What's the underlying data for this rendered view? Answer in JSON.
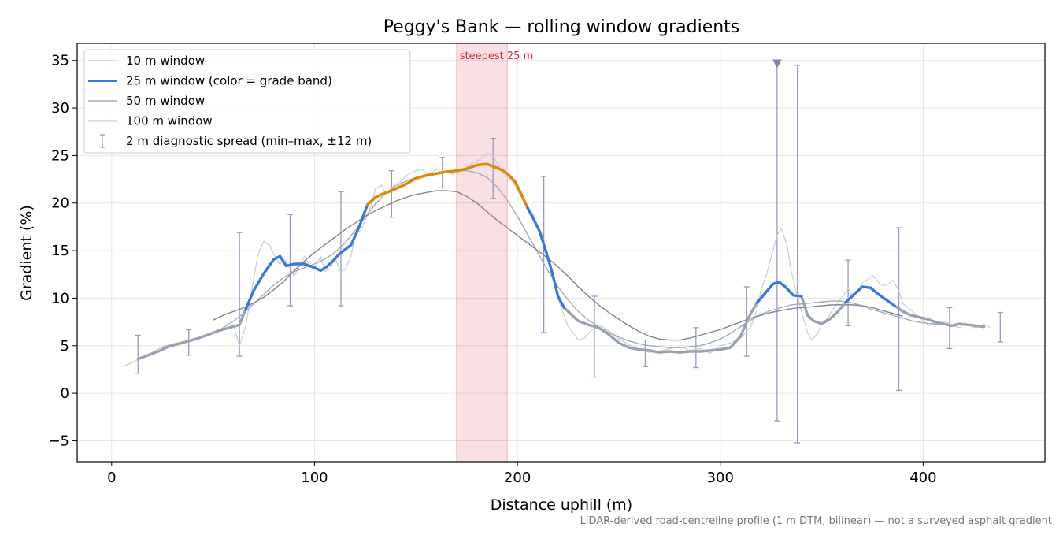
{
  "chart_data": {
    "type": "line",
    "title": "Peggy's Bank — rolling window gradients",
    "xlabel": "Distance uphill (m)",
    "ylabel": "Gradient (%)",
    "xlim": [
      -17,
      460
    ],
    "ylim": [
      -7.2,
      36.8
    ],
    "xticks": [
      0,
      100,
      200,
      300,
      400
    ],
    "yticks": [
      -5,
      0,
      5,
      10,
      15,
      20,
      25,
      30,
      35
    ],
    "grid": true,
    "legend_position": "upper-left",
    "footnote": "LiDAR-derived road-centreline profile (1 m DTM, bilinear) — not a surveyed asphalt gradient",
    "highlight": {
      "label": "steepest 25 m",
      "x_range": [
        170,
        195
      ],
      "color": "#d62839"
    },
    "marker": {
      "x": 328,
      "y": 34.6,
      "symbol": "triangle-down",
      "color": "#8a7fa8"
    },
    "grade_colors": {
      "moderate": "#3a78d6",
      "steep": "#e08800",
      "steep_threshold": 20
    },
    "series": [
      {
        "name": "10 m window",
        "color": "#c6ccd6",
        "width": 1.2,
        "x": [
          5,
          10,
          15,
          20,
          25,
          30,
          35,
          40,
          45,
          50,
          55,
          60,
          63,
          66,
          68,
          70,
          72,
          75,
          78,
          80,
          83,
          85,
          88,
          90,
          93,
          95,
          98,
          100,
          103,
          105,
          108,
          110,
          113,
          115,
          118,
          120,
          123,
          125,
          128,
          130,
          133,
          135,
          138,
          140,
          143,
          145,
          148,
          150,
          153,
          155,
          158,
          160,
          163,
          165,
          168,
          170,
          173,
          175,
          178,
          180,
          183,
          185,
          188,
          190,
          193,
          195,
          198,
          200,
          203,
          205,
          208,
          210,
          213,
          215,
          218,
          220,
          223,
          225,
          228,
          230,
          233,
          235,
          238,
          240,
          245,
          250,
          255,
          260,
          265,
          270,
          275,
          280,
          285,
          290,
          295,
          300,
          305,
          310,
          315,
          318,
          320,
          323,
          325,
          328,
          330,
          333,
          335,
          338,
          340,
          343,
          345,
          348,
          350,
          353,
          355,
          358,
          360,
          363,
          365,
          368,
          370,
          373,
          375,
          378,
          380,
          383,
          385,
          388,
          390,
          393,
          395,
          398,
          400,
          403,
          405,
          408,
          410,
          413,
          415,
          418,
          420,
          423,
          425,
          428,
          430,
          433
        ],
        "y": [
          2.8,
          3.2,
          3.8,
          4.3,
          4.9,
          5.2,
          5.4,
          5.6,
          5.9,
          6.3,
          6.6,
          7.2,
          5.0,
          7.0,
          9.5,
          12.0,
          14.5,
          16.0,
          15.5,
          14.6,
          13.5,
          14.2,
          13.1,
          12.3,
          13.6,
          14.4,
          13.3,
          13.1,
          14.4,
          12.8,
          13.1,
          14.3,
          12.7,
          13.0,
          14.4,
          16.7,
          17.2,
          18.2,
          19.8,
          21.5,
          21.9,
          21.0,
          21.6,
          22.0,
          22.3,
          22.9,
          23.2,
          23.4,
          23.6,
          23.1,
          23.2,
          23.6,
          23.1,
          23.3,
          23.0,
          23.2,
          23.4,
          23.8,
          24.2,
          24.4,
          24.8,
          25.3,
          25.0,
          24.2,
          23.2,
          22.8,
          22.2,
          21.3,
          20.3,
          19.6,
          18.8,
          17.3,
          15.5,
          14.3,
          12.0,
          10.0,
          8.2,
          7.0,
          6.2,
          5.6,
          5.8,
          6.3,
          6.9,
          7.2,
          6.6,
          5.7,
          5.1,
          4.6,
          4.3,
          4.4,
          4.7,
          4.9,
          4.5,
          4.7,
          4.2,
          5.0,
          5.3,
          5.8,
          7.0,
          8.7,
          10.8,
          12.6,
          14.3,
          16.6,
          17.4,
          15.5,
          12.8,
          10.2,
          8.6,
          6.4,
          5.6,
          6.3,
          7.4,
          7.9,
          8.7,
          9.5,
          10.1,
          11.0,
          10.4,
          10.9,
          11.6,
          12.0,
          12.4,
          11.7,
          11.3,
          11.5,
          11.9,
          10.8,
          9.4,
          9.0,
          8.5,
          8.0,
          7.6,
          7.1,
          7.4,
          7.2,
          7.6,
          7.3,
          7.1,
          6.9,
          7.3,
          7.2,
          6.9,
          7.0,
          7.3,
          6.9
        ]
      },
      {
        "name": "25 m window (color = grade band)",
        "color": "#3a78d6",
        "width": 2.6,
        "grade_colored": true,
        "x": [
          13,
          18,
          23,
          28,
          33,
          38,
          43,
          48,
          53,
          58,
          63,
          66,
          70,
          75,
          80,
          83,
          86,
          90,
          95,
          100,
          103,
          106,
          109,
          112,
          115,
          118,
          122,
          126,
          130,
          134,
          138,
          142,
          146,
          150,
          155,
          160,
          165,
          170,
          175,
          180,
          185,
          190,
          193,
          196,
          199,
          202,
          205,
          208,
          211,
          214,
          217,
          220,
          223,
          226,
          230,
          235,
          240,
          245,
          250,
          255,
          260,
          265,
          270,
          275,
          280,
          285,
          290,
          295,
          300,
          305,
          310,
          314,
          318,
          322,
          326,
          329,
          332,
          336,
          340,
          343,
          346,
          350,
          354,
          358,
          362,
          366,
          370,
          374,
          378,
          382,
          386,
          390,
          394,
          398,
          402,
          406,
          410,
          414,
          418,
          422,
          426,
          430
        ],
        "y": [
          3.6,
          4.0,
          4.4,
          4.9,
          5.2,
          5.5,
          5.8,
          6.2,
          6.6,
          6.9,
          7.2,
          8.8,
          10.8,
          12.6,
          14.1,
          14.4,
          13.4,
          13.6,
          13.6,
          13.2,
          12.9,
          13.3,
          13.9,
          14.6,
          15.1,
          15.6,
          17.5,
          19.8,
          20.6,
          21.0,
          21.3,
          21.7,
          22.1,
          22.6,
          22.9,
          23.1,
          23.3,
          23.4,
          23.6,
          24.0,
          24.1,
          23.7,
          23.4,
          22.9,
          22.2,
          20.9,
          19.5,
          18.3,
          17.0,
          15.0,
          12.8,
          10.2,
          9.0,
          8.4,
          7.6,
          7.2,
          6.9,
          6.2,
          5.3,
          4.8,
          4.6,
          4.5,
          4.3,
          4.4,
          4.3,
          4.4,
          4.4,
          4.5,
          4.6,
          4.8,
          6.0,
          8.0,
          9.5,
          10.5,
          11.5,
          11.7,
          11.2,
          10.3,
          10.2,
          8.2,
          7.6,
          7.3,
          7.8,
          8.6,
          9.6,
          10.4,
          11.2,
          11.1,
          10.4,
          9.8,
          9.2,
          8.6,
          8.2,
          8.0,
          7.8,
          7.5,
          7.3,
          7.1,
          7.3,
          7.2,
          7.1,
          7.0
        ]
      },
      {
        "name": "50 m window",
        "color": "#a3abb9",
        "width": 1.4,
        "x": [
          25,
          30,
          35,
          40,
          45,
          50,
          55,
          60,
          65,
          70,
          75,
          80,
          85,
          90,
          95,
          100,
          105,
          110,
          115,
          120,
          125,
          130,
          135,
          140,
          145,
          150,
          155,
          160,
          165,
          170,
          175,
          180,
          185,
          190,
          195,
          200,
          205,
          210,
          215,
          220,
          225,
          230,
          235,
          240,
          245,
          250,
          255,
          260,
          265,
          270,
          275,
          280,
          285,
          290,
          295,
          300,
          305,
          310,
          315,
          320,
          325,
          330,
          335,
          340,
          345,
          350,
          355,
          360,
          365,
          370,
          375,
          380,
          385,
          390,
          395,
          400,
          405,
          410,
          415
        ],
        "y": [
          4.8,
          5.1,
          5.4,
          5.7,
          6.0,
          6.4,
          6.9,
          7.6,
          8.4,
          9.4,
          10.4,
          11.4,
          12.2,
          12.8,
          13.2,
          13.6,
          14.1,
          14.8,
          15.8,
          17.1,
          18.5,
          19.9,
          21.0,
          21.8,
          22.3,
          22.7,
          23.0,
          23.2,
          23.3,
          23.4,
          23.4,
          23.2,
          22.7,
          21.7,
          20.3,
          18.6,
          16.7,
          14.8,
          12.9,
          11.2,
          9.8,
          8.6,
          7.7,
          7.0,
          6.4,
          5.9,
          5.5,
          5.2,
          5.0,
          4.9,
          4.8,
          4.8,
          4.9,
          5.0,
          5.3,
          5.7,
          6.3,
          7.0,
          7.7,
          8.3,
          8.7,
          9.0,
          9.3,
          9.4,
          9.5,
          9.6,
          9.7,
          9.7,
          9.5,
          9.2,
          8.8,
          8.5,
          8.2,
          7.9,
          7.6,
          7.4,
          7.3,
          7.2,
          7.1
        ]
      },
      {
        "name": "100 m window",
        "color": "#7d8596",
        "width": 1.4,
        "x": [
          50,
          55,
          60,
          65,
          70,
          75,
          80,
          85,
          90,
          95,
          100,
          105,
          110,
          115,
          120,
          125,
          130,
          135,
          140,
          145,
          150,
          155,
          160,
          165,
          170,
          175,
          180,
          185,
          190,
          195,
          200,
          205,
          210,
          215,
          220,
          225,
          230,
          235,
          240,
          245,
          250,
          255,
          260,
          265,
          270,
          275,
          280,
          285,
          290,
          295,
          300,
          305,
          310,
          315,
          320,
          325,
          330,
          335,
          340,
          345,
          350,
          355,
          360,
          365,
          370,
          375,
          380,
          385,
          390
        ],
        "y": [
          7.7,
          8.2,
          8.6,
          9.0,
          9.5,
          10.1,
          10.9,
          11.8,
          12.9,
          13.9,
          14.8,
          15.6,
          16.4,
          17.2,
          17.9,
          18.6,
          19.2,
          19.7,
          20.2,
          20.6,
          20.9,
          21.1,
          21.3,
          21.3,
          21.2,
          20.7,
          20.0,
          19.1,
          18.2,
          17.4,
          16.6,
          15.8,
          15.0,
          14.2,
          13.3,
          12.3,
          11.2,
          10.2,
          9.3,
          8.5,
          7.8,
          7.1,
          6.5,
          6.0,
          5.7,
          5.6,
          5.6,
          5.8,
          6.1,
          6.4,
          6.7,
          7.1,
          7.5,
          7.9,
          8.2,
          8.5,
          8.7,
          8.9,
          9.0,
          9.1,
          9.2,
          9.3,
          9.3,
          9.3,
          9.2,
          9.0,
          8.7,
          8.4,
          8.1
        ]
      }
    ],
    "spread": {
      "name": "2 m diagnostic spread (min–max, ±12 m)",
      "color": "#9b96be",
      "x": [
        13,
        38,
        63,
        88,
        113,
        138,
        163,
        188,
        213,
        238,
        263,
        288,
        313,
        338,
        363,
        388,
        413,
        438
      ],
      "ymin": [
        2.1,
        4.0,
        3.9,
        9.2,
        9.2,
        18.5,
        21.6,
        20.5,
        6.4,
        1.7,
        2.8,
        2.7,
        3.9,
        -5.2,
        7.1,
        0.3,
        4.7,
        5.4
      ],
      "ymax": [
        6.1,
        6.7,
        16.9,
        18.8,
        21.2,
        23.4,
        24.8,
        26.8,
        22.8,
        10.2,
        5.6,
        6.9,
        11.2,
        34.5,
        14.0,
        17.4,
        9.0,
        8.5
      ]
    },
    "spike_bar": {
      "x": 328,
      "ymin": -2.9,
      "ymax": 34.6
    }
  }
}
